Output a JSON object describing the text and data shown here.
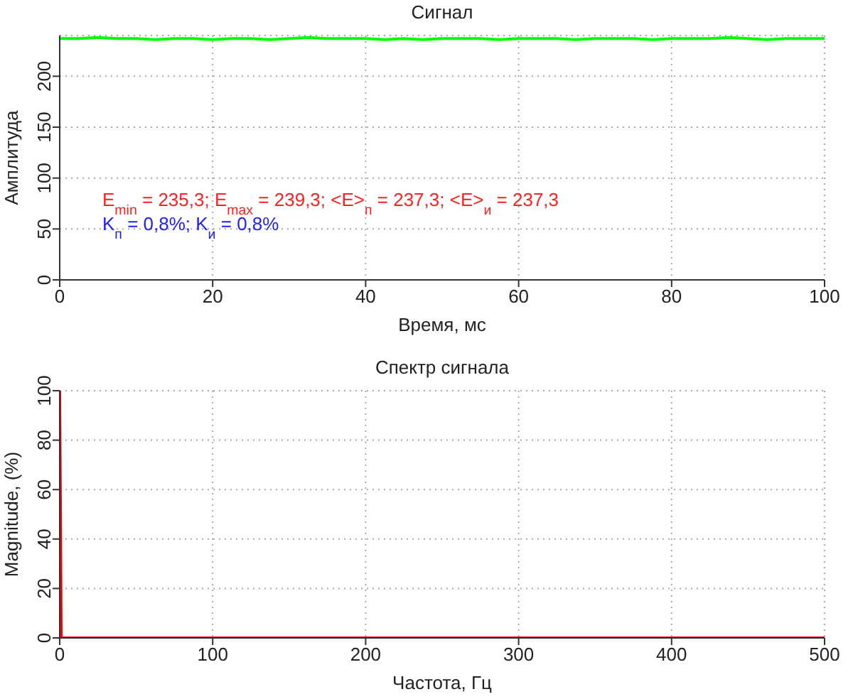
{
  "chart_data": [
    {
      "type": "line",
      "title": "Сигнал",
      "xlabel": "Время, мс",
      "ylabel": "Амплитуда",
      "x": [
        0,
        2.5,
        5,
        7.5,
        10,
        12.5,
        15,
        17.5,
        20,
        22.5,
        25,
        27.5,
        30,
        32.5,
        35,
        37.5,
        40,
        42.5,
        45,
        47.5,
        50,
        52.5,
        55,
        57.5,
        60,
        62.5,
        65,
        67.5,
        70,
        72.5,
        75,
        77.5,
        80,
        82.5,
        85,
        87.5,
        90,
        92.5,
        95,
        97.5,
        100
      ],
      "series": [
        {
          "color": "#00ff00",
          "values": [
            237,
            237,
            238,
            237,
            237,
            236,
            237,
            237,
            236,
            237,
            237,
            236,
            237,
            238,
            237,
            237,
            237,
            236,
            237,
            236,
            237,
            237,
            237,
            236,
            237,
            237,
            237,
            236,
            237,
            237,
            237,
            236,
            237,
            237,
            237,
            238,
            237,
            236,
            237,
            237,
            237
          ]
        }
      ],
      "xlim": [
        0,
        100
      ],
      "xticks": [
        0,
        20,
        40,
        60,
        80,
        100
      ],
      "ylim": [
        0,
        240
      ],
      "yticks": [
        0,
        50,
        100,
        150,
        200
      ],
      "grid": true,
      "legend": false,
      "marker": "none",
      "line_style": "solid",
      "annotations": [
        "E$_{min}$ = 235,3; E$_{max}$ = 239,3; <E>$_{п}$ = 237,3; <E>$_{и}$ = 237,3",
        "K$_{п}$ = 0,8%; K$_{и}$ = 0,8%"
      ]
    },
    {
      "type": "line",
      "title": "Спектр сигнала",
      "xlabel": "Частота, Гц",
      "ylabel": "Magnitude, (%)",
      "x": [
        0,
        1,
        500
      ],
      "series": [
        {
          "color": "#ff0000",
          "values": [
            100,
            0,
            0
          ]
        }
      ],
      "xlim": [
        0,
        500
      ],
      "xticks": [
        0,
        100,
        200,
        300,
        400,
        500
      ],
      "ylim": [
        0,
        100
      ],
      "yticks": [
        0,
        20,
        40,
        60,
        80,
        100
      ],
      "grid": true,
      "legend": false,
      "marker": "none",
      "line_style": "solid"
    }
  ]
}
